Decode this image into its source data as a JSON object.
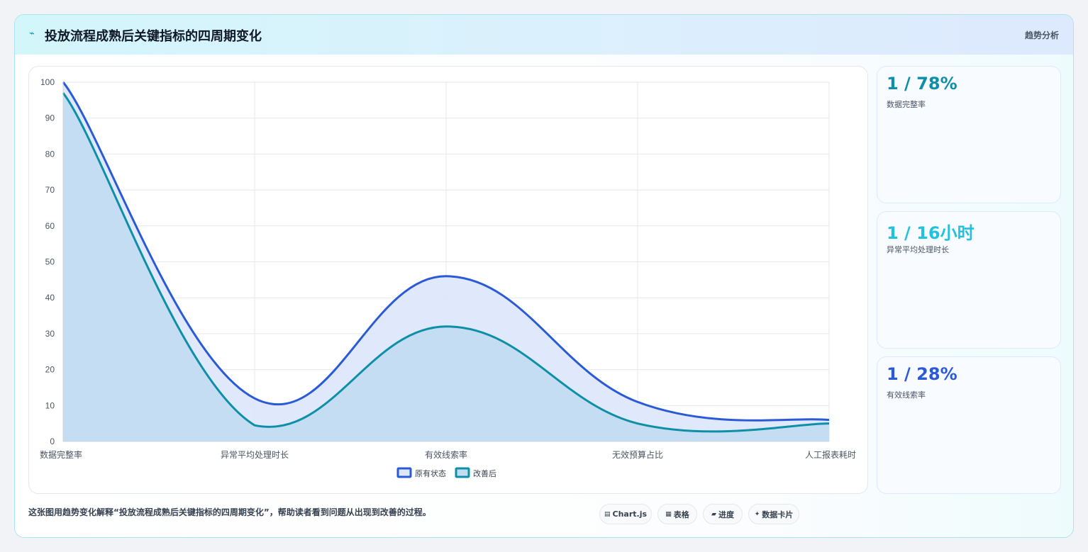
{
  "header": {
    "title": "投放流程成熟后关键指标的四周期变化",
    "tag": "趋势分析"
  },
  "kpis": [
    {
      "value": "1 / 78%",
      "label": "数据完整率",
      "color": "#0e8fa8"
    },
    {
      "value": "1 / 16小时",
      "label": "异常平均处理时长",
      "color": "#22c1dc"
    },
    {
      "value": "1 / 28%",
      "label": "有效线索率",
      "color": "#2a5ad6"
    }
  ],
  "caption": "这张图用趋势变化解释“投放流程成熟后关键指标的四周期变化”，帮助读者看到问题从出现到改善的过程。",
  "chips": [
    {
      "icon": "chart-icon",
      "glyph": "▤",
      "label": "Chart.js"
    },
    {
      "icon": "table-icon",
      "glyph": "▦",
      "label": "表格"
    },
    {
      "icon": "progress-icon",
      "glyph": "▰",
      "label": "进度"
    },
    {
      "icon": "card-icon",
      "glyph": "✦",
      "label": "数据卡片"
    }
  ],
  "chart_data": {
    "type": "area",
    "categories": [
      "数据完整率",
      "异常平均处理时长",
      "有效线索率",
      "无效预算占比",
      "人工报表耗时"
    ],
    "ylim": [
      0,
      100
    ],
    "yticks": [
      0,
      10,
      20,
      30,
      40,
      50,
      60,
      70,
      80,
      90,
      100
    ],
    "grid": true,
    "legend_position": "bottom",
    "series": [
      {
        "name": "原有状态",
        "values": [
          100,
          12,
          46,
          11,
          6
        ],
        "color": "#2a5ad6",
        "fill": "#dde8fb"
      },
      {
        "name": "改善后",
        "values": [
          97,
          4.5,
          32,
          5,
          5
        ],
        "color": "#0e8fa8",
        "fill": "#c2dcf2"
      }
    ]
  }
}
